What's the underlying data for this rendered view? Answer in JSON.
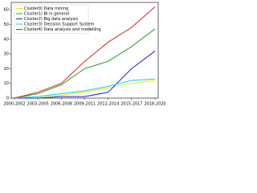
{
  "chart_data": {
    "type": "line",
    "categories": [
      "2000-2002",
      "2003-2005",
      "2006-2008",
      "2009-2011",
      "2012-2014",
      "2015-2017",
      "2018-2020"
    ],
    "series": [
      {
        "name": "Cluster0) Data mining",
        "color": "#ffe000",
        "values": [
          0,
          1,
          2,
          4,
          7,
          10,
          12
        ]
      },
      {
        "name": "Cluster1) BI in general",
        "color": "#2ca02c",
        "values": [
          0,
          3,
          9,
          20,
          25,
          35,
          47
        ]
      },
      {
        "name": "Cluster2) Big data analysis",
        "color": "#1f1fd0",
        "values": [
          0,
          0,
          1,
          1,
          4,
          20,
          32
        ]
      },
      {
        "name": "Cluster3) Decision Support System",
        "color": "#00d4ff",
        "values": [
          0,
          1,
          3,
          5,
          8,
          12,
          13
        ]
      },
      {
        "name": "Cluster4) Data analysis and modelling",
        "color": "#e02020",
        "values": [
          0,
          4,
          10,
          25,
          38,
          48,
          62
        ]
      }
    ],
    "ylim": [
      0,
      65
    ],
    "yticks": [
      0,
      10,
      20,
      30,
      40,
      50,
      60
    ],
    "legend": "upper-left"
  }
}
